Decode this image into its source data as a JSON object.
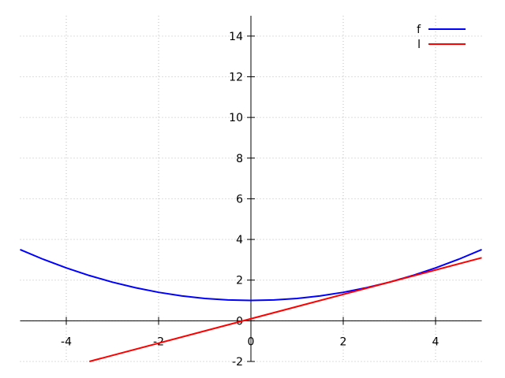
{
  "chart_data": {
    "type": "line",
    "series": [
      {
        "name": "f",
        "color": "#0000ff",
        "x": [
          -5,
          -4.5,
          -4,
          -3.5,
          -3,
          -2.5,
          -2,
          -1.5,
          -1,
          -0.5,
          0,
          0.5,
          1,
          1.5,
          2,
          2.5,
          3,
          3.5,
          4,
          4.5,
          5
        ],
        "values": [
          3.5,
          3.025,
          2.6,
          2.225,
          1.9,
          1.625,
          1.4,
          1.225,
          1.1,
          1.025,
          1,
          1.025,
          1.1,
          1.225,
          1.4,
          1.625,
          1.9,
          2.225,
          2.6,
          3.025,
          3.5
        ]
      },
      {
        "name": "l",
        "color": "#ff0000",
        "x": [
          -3.5,
          5
        ],
        "values": [
          -2,
          3.1
        ]
      }
    ],
    "xlim": [
      -5,
      5
    ],
    "xticks": [
      -4,
      -2,
      0,
      2,
      4
    ],
    "ylim": [
      -2,
      15
    ],
    "yticks": [
      -2,
      0,
      2,
      4,
      6,
      8,
      10,
      12,
      14
    ],
    "grid": true,
    "legend": "upper right"
  }
}
